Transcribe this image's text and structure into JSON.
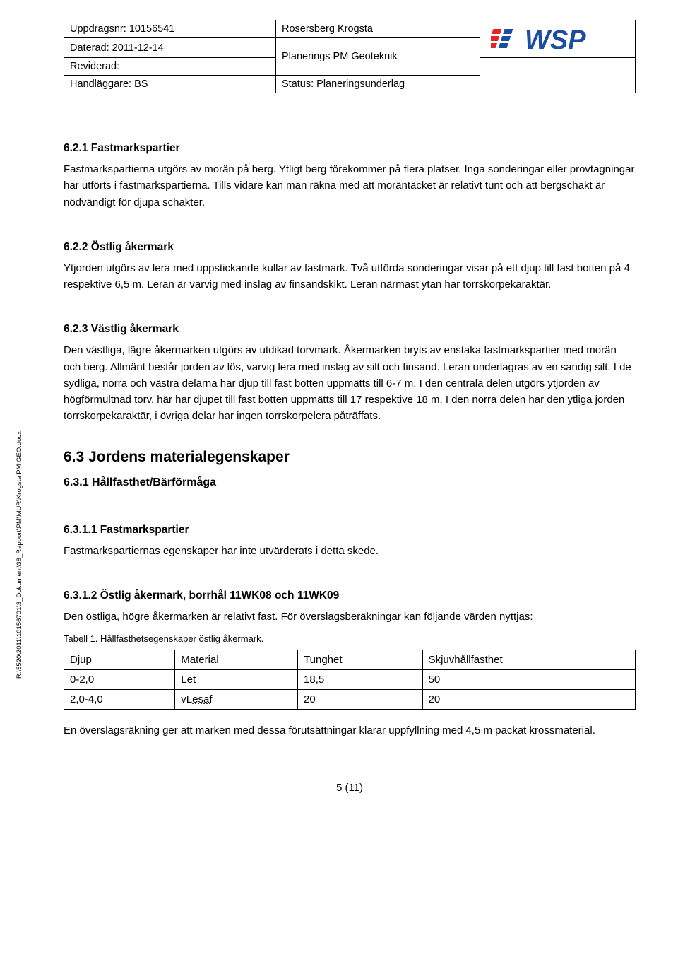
{
  "header": {
    "col1": {
      "r1": "Uppdragsnr: 10156541",
      "r2": "Daterad: 2011-12-14",
      "r3": "Reviderad:",
      "r4": "Handläggare: BS"
    },
    "col2": {
      "r1": "Rosersberg Krogsta",
      "r2": "Planerings PM Geoteknik",
      "r4": "Status: Planeringsunderlag"
    },
    "logo_text": "WSP",
    "logo_red": "#e3242b",
    "logo_blue": "#1b4ea0"
  },
  "sections": {
    "s621": {
      "title": "6.2.1   Fastmarkspartier",
      "p1": "Fastmarkspartierna utgörs av morän på berg. Ytligt berg förekommer på flera platser. Inga sonderingar eller provtagningar har utförts i fastmarkspartierna. Tills vidare kan man räkna med att moräntäcket är relativt tunt och att bergschakt är nödvändigt för djupa schakter."
    },
    "s622": {
      "title": "6.2.2   Östlig åkermark",
      "p1": "Ytjorden utgörs av lera med uppstickande kullar av fastmark. Två utförda sonderingar visar på ett djup till fast botten på 4 respektive 6,5 m. Leran är varvig med inslag av finsandskikt. Leran närmast ytan har torrskorpekaraktär."
    },
    "s623": {
      "title": "6.2.3   Västlig åkermark",
      "p1": "Den västliga, lägre åkermarken utgörs av utdikad torvmark. Åkermarken bryts av enstaka fastmarkspartier med morän och berg. Allmänt består jorden av lös, varvig lera med inslag av silt och finsand. Leran underlagras av en sandig silt. I de sydliga, norra och västra delarna har djup till fast botten uppmätts till 6-7 m. I den centrala delen utgörs ytjorden av högförmultnad torv, här har djupet till fast botten uppmätts till 17 respektive 18 m. I den norra delen har den ytliga jorden torrskorpekaraktär, i övriga delar har ingen torrskorpelera påträffats."
    },
    "s63": {
      "title": "6.3          Jordens materialegenskaper"
    },
    "s631": {
      "title": "6.3.1        Hållfasthet/Bärförmåga"
    },
    "s6311": {
      "title": "6.3.1.1   Fastmarkspartier",
      "p1": "Fastmarkspartiernas egenskaper har inte utvärderats i detta skede."
    },
    "s6312": {
      "title": "6.3.1.2   Östlig åkermark, borrhål 11WK08 och 11WK09",
      "p1": "Den östliga, högre åkermarken är relativt fast. För överslagsberäkningar kan följande värden nyttjas:",
      "caption": "Tabell 1. Hållfasthetsegenskaper östlig åkermark.",
      "p2": "En överslagsräkning ger att marken med dessa förutsättningar klarar uppfyllning med 4,5 m packat krossmaterial."
    }
  },
  "table1": {
    "columns": [
      "Djup",
      "Material",
      "Tunghet",
      "Skjuvhållfasthet"
    ],
    "rows": [
      [
        "0-2,0",
        "Let",
        "18,5",
        "50"
      ],
      [
        "2,0-4,0",
        "vLesaf",
        "20",
        "20"
      ]
    ],
    "dotted_underline_cells": [
      [
        1,
        1
      ]
    ]
  },
  "side_label": "R:\\5520\\2011\\10156701\\3_Dokument\\38_Rapport\\PM\\MUR\\Krogsta PM GEO.docx",
  "footer": "5 (11)"
}
